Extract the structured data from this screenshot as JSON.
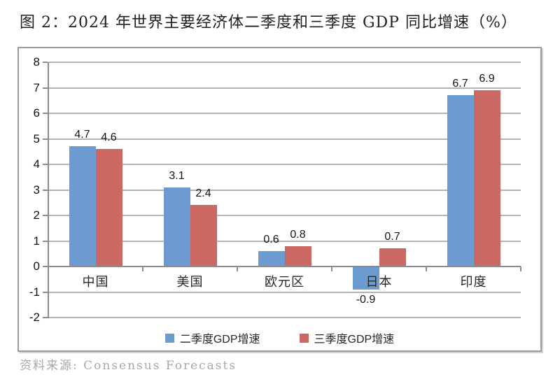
{
  "title": "图 2：2024 年世界主要经济体二季度和三季度 GDP 同比增速（%）",
  "source": "资料来源: Consensus Forecasts",
  "colors": {
    "series_q2": "#6c9bd2",
    "series_q3": "#cb6863",
    "gridline": "#b3b3b3",
    "axis": "#8c8c8c",
    "frame_border": "#9b9b9b",
    "text": "#141414",
    "source_text": "#a8a8a8"
  },
  "chart_data": {
    "type": "bar",
    "title": "图 2：2024 年世界主要经济体二季度和三季度 GDP 同比增速（%）",
    "categories": [
      "中国",
      "美国",
      "欧元区",
      "日本",
      "印度"
    ],
    "series": [
      {
        "name": "二季度GDP增速",
        "color": "#6c9bd2",
        "values": [
          4.7,
          3.1,
          0.6,
          -0.9,
          6.7
        ]
      },
      {
        "name": "三季度GDP增速",
        "color": "#cb6863",
        "values": [
          4.6,
          2.4,
          0.8,
          0.7,
          6.9
        ]
      }
    ],
    "xlabel": "",
    "ylabel": "",
    "ylim": [
      -2,
      8
    ],
    "ytick_step": 1,
    "yticks": [
      -2,
      -1,
      0,
      1,
      2,
      3,
      4,
      5,
      6,
      7,
      8
    ],
    "grid": true,
    "value_labels": true,
    "legend_position": "bottom"
  }
}
